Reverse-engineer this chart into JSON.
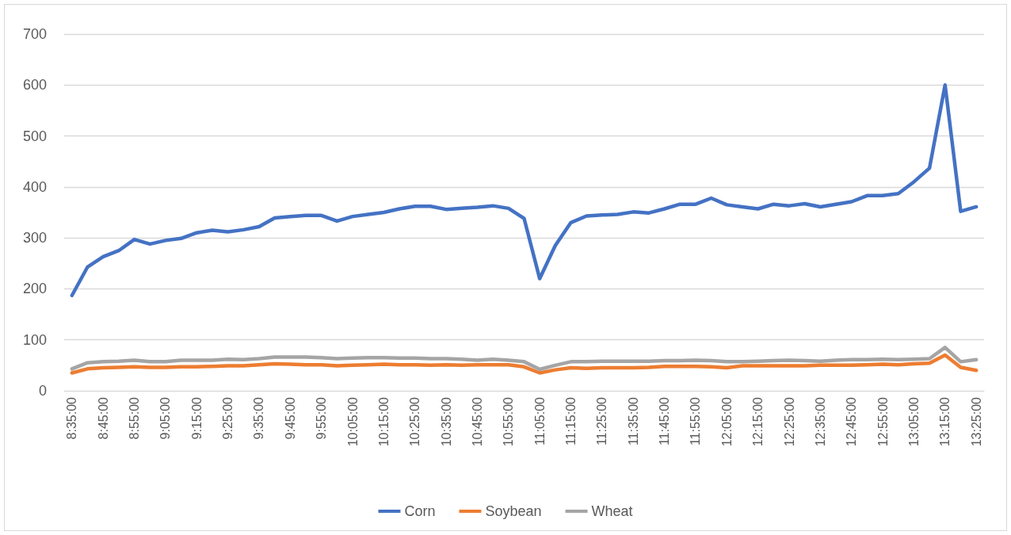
{
  "chart_data": {
    "type": "line",
    "categories": [
      "8:35:00",
      null,
      "8:45:00",
      null,
      "8:55:00",
      null,
      "9:05:00",
      null,
      "9:15:00",
      null,
      "9:25:00",
      null,
      "9:35:00",
      null,
      "9:45:00",
      null,
      "9:55:00",
      null,
      "10:05:00",
      null,
      "10:15:00",
      null,
      "10:25:00",
      null,
      "10:35:00",
      null,
      "10:45:00",
      null,
      "10:55:00",
      null,
      "11:05:00",
      null,
      "11:15:00",
      null,
      "11:25:00",
      null,
      "11:35:00",
      null,
      "11:45:00",
      null,
      "11:55:00",
      null,
      "12:05:00",
      null,
      "12:15:00",
      null,
      "12:25:00",
      null,
      "12:35:00",
      null,
      "12:45:00",
      null,
      "12:55:00",
      null,
      "13:05:00",
      null,
      "13:15:00",
      null,
      "13:25:00"
    ],
    "series": [
      {
        "name": "Corn",
        "color": "#4472c4",
        "values": [
          187,
          243,
          263,
          275,
          297,
          288,
          295,
          299,
          310,
          315,
          312,
          316,
          322,
          339,
          342,
          344,
          344,
          333,
          342,
          346,
          350,
          357,
          362,
          362,
          356,
          358,
          360,
          363,
          358,
          338,
          220,
          285,
          330,
          343,
          345,
          346,
          351,
          349,
          357,
          366,
          366,
          378,
          365,
          361,
          357,
          366,
          363,
          367,
          361,
          366,
          371,
          383,
          383,
          387,
          410,
          437,
          600,
          352,
          361
        ]
      },
      {
        "name": "Soybean",
        "color": "#ed7d31",
        "values": [
          35,
          43,
          45,
          46,
          47,
          46,
          46,
          47,
          47,
          48,
          49,
          49,
          51,
          53,
          52,
          51,
          51,
          49,
          50,
          51,
          52,
          51,
          51,
          50,
          51,
          50,
          51,
          51,
          51,
          47,
          35,
          41,
          45,
          44,
          45,
          45,
          45,
          46,
          48,
          48,
          48,
          47,
          45,
          49,
          49,
          49,
          49,
          49,
          50,
          50,
          50,
          51,
          52,
          51,
          53,
          54,
          70,
          46,
          40
        ]
      },
      {
        "name": "Wheat",
        "color": "#a5a5a5",
        "values": [
          43,
          55,
          57,
          58,
          60,
          57,
          57,
          60,
          60,
          60,
          62,
          61,
          63,
          66,
          66,
          66,
          65,
          63,
          64,
          65,
          65,
          64,
          64,
          63,
          63,
          62,
          60,
          62,
          60,
          57,
          42,
          50,
          57,
          57,
          58,
          58,
          58,
          58,
          59,
          59,
          60,
          59,
          57,
          57,
          58,
          59,
          60,
          59,
          58,
          60,
          61,
          61,
          62,
          61,
          62,
          63,
          85,
          57,
          61
        ]
      }
    ],
    "ylim": [
      0,
      700
    ],
    "yticks": [
      0,
      100,
      200,
      300,
      400,
      500,
      600,
      700
    ],
    "grid": "y",
    "legend": "bottom",
    "marker": "none",
    "line_style": "solid"
  }
}
